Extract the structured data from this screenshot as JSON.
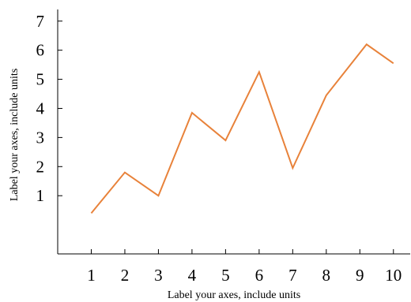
{
  "chart_data": {
    "type": "line",
    "xlabel": "Label your axes, include units",
    "ylabel": "Label your axes, include units",
    "xlim": [
      0,
      10.5
    ],
    "ylim": [
      -1,
      7.4
    ],
    "x_ticks": [
      "1",
      "2",
      "3",
      "4",
      "5",
      "6",
      "7",
      "8",
      "9",
      "10"
    ],
    "y_ticks": [
      "1",
      "2",
      "3",
      "4",
      "5",
      "6",
      "7"
    ],
    "grid": false,
    "line_color": "#E8823A",
    "series": [
      {
        "x": [
          1,
          2,
          3,
          4,
          5,
          6,
          7,
          8,
          9.2,
          10
        ],
        "y": [
          0.4,
          1.8,
          1.0,
          3.85,
          2.9,
          5.25,
          1.95,
          4.45,
          6.2,
          5.55
        ]
      }
    ]
  }
}
